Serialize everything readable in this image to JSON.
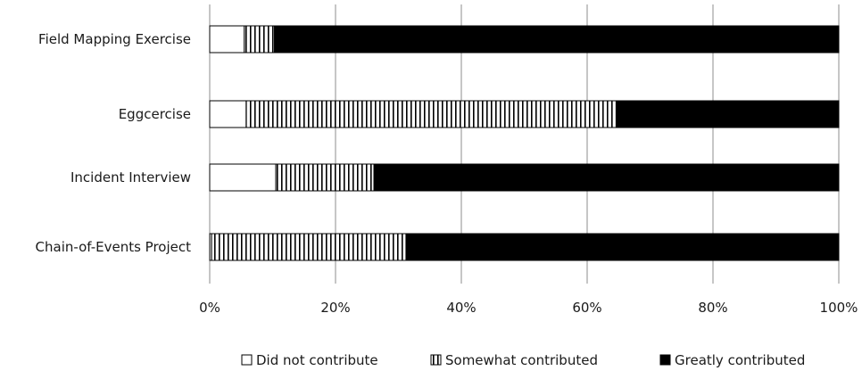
{
  "chart_data": {
    "type": "bar",
    "orientation": "horizontal",
    "stacked": "percent",
    "categories": [
      "Field Mapping Exercise",
      "Eggcercise",
      "Incident Interview",
      "Chain-of-Events Project"
    ],
    "series": [
      {
        "name": "Did not contribute",
        "values": [
          5.5,
          5.8,
          10.5,
          0.3
        ],
        "fill": "white"
      },
      {
        "name": "Somewhat contributed",
        "values": [
          4.8,
          58.8,
          15.6,
          30.9
        ],
        "fill": "vertical-stripes"
      },
      {
        "name": "Greatly contributed",
        "values": [
          89.7,
          35.4,
          73.9,
          68.8
        ],
        "fill": "black"
      }
    ],
    "xlim": [
      0,
      100
    ],
    "xticks": [
      "0%",
      "20%",
      "40%",
      "60%",
      "80%",
      "100%"
    ],
    "grid": "vertical",
    "legend": "bottom",
    "title": "",
    "xlabel": "",
    "ylabel": "",
    "colors": {
      "stroke": "#000000",
      "grid": "#8c8c8c",
      "black": "#000000",
      "white": "#ffffff"
    }
  }
}
